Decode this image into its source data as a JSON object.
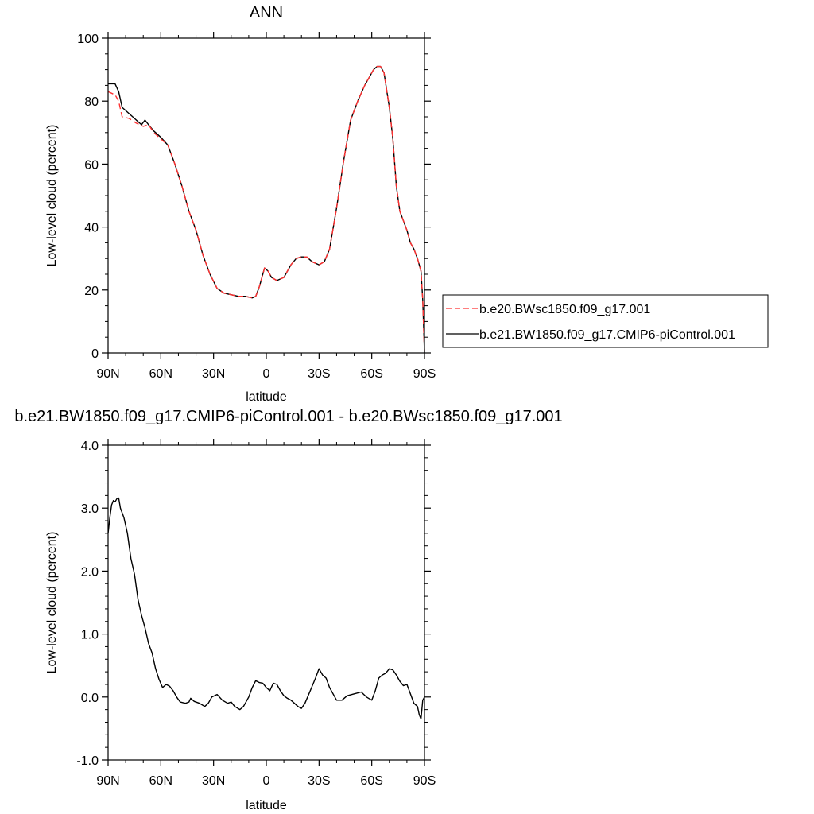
{
  "chart_data": [
    {
      "type": "line",
      "title": "ANN",
      "xlabel": "latitude",
      "ylabel": "Low-level cloud (percent)",
      "xlim": [
        90,
        -90
      ],
      "ylim": [
        0,
        100
      ],
      "x_tick_values": [
        90,
        60,
        30,
        0,
        -30,
        -60,
        -90
      ],
      "x_tick_labels": [
        "90N",
        "60N",
        "30N",
        "0",
        "30S",
        "60S",
        "90S"
      ],
      "y_tick_values": [
        0,
        20,
        40,
        60,
        80,
        100
      ],
      "y_tick_labels": [
        "0",
        "20",
        "40",
        "60",
        "80",
        "100"
      ],
      "legend_position": "right",
      "series": [
        {
          "name": "b.e20.BWsc1850.f09_g17.001",
          "color": "#ff3030",
          "dash": "dashed",
          "points": [
            [
              90,
              83
            ],
            [
              86,
              82
            ],
            [
              84,
              80
            ],
            [
              82,
              75
            ],
            [
              78,
              74.5
            ],
            [
              74,
              73
            ],
            [
              70,
              72
            ],
            [
              67,
              72.5
            ],
            [
              64,
              70
            ],
            [
              60,
              68
            ],
            [
              56,
              66
            ],
            [
              52,
              60
            ],
            [
              48,
              53
            ],
            [
              44,
              45
            ],
            [
              40,
              39
            ],
            [
              36,
              31
            ],
            [
              32,
              25
            ],
            [
              28,
              20.5
            ],
            [
              24,
              19
            ],
            [
              20,
              18.5
            ],
            [
              16,
              18
            ],
            [
              12,
              18
            ],
            [
              8,
              17.5
            ],
            [
              6,
              18
            ],
            [
              4,
              21
            ],
            [
              1,
              27
            ],
            [
              -1,
              26
            ],
            [
              -3,
              24
            ],
            [
              -6,
              23
            ],
            [
              -10,
              24
            ],
            [
              -14,
              28
            ],
            [
              -17,
              30
            ],
            [
              -20,
              30.5
            ],
            [
              -23,
              30.5
            ],
            [
              -26,
              29
            ],
            [
              -30,
              28
            ],
            [
              -33,
              29
            ],
            [
              -36,
              33
            ],
            [
              -40,
              46
            ],
            [
              -44,
              61
            ],
            [
              -48,
              74
            ],
            [
              -52,
              80
            ],
            [
              -56,
              85
            ],
            [
              -59,
              88
            ],
            [
              -61,
              90
            ],
            [
              -63,
              91
            ],
            [
              -65,
              91
            ],
            [
              -67,
              89
            ],
            [
              -70,
              78
            ],
            [
              -72,
              68
            ],
            [
              -74,
              53
            ],
            [
              -76,
              45
            ],
            [
              -78,
              42
            ],
            [
              -80,
              39
            ],
            [
              -82,
              35
            ],
            [
              -84,
              33
            ],
            [
              -86,
              30
            ],
            [
              -88,
              26
            ],
            [
              -89,
              17
            ],
            [
              -90,
              0
            ]
          ]
        },
        {
          "name": "b.e21.BW1850.f09_g17.CMIP6-piControl.001",
          "color": "#000000",
          "dash": "solid",
          "points": [
            [
              90,
              85.5
            ],
            [
              86,
              85.5
            ],
            [
              84,
              83
            ],
            [
              82,
              78
            ],
            [
              78,
              76
            ],
            [
              76,
              75
            ],
            [
              74,
              74
            ],
            [
              71,
              72.5
            ],
            [
              69,
              74
            ],
            [
              67,
              72.5
            ],
            [
              64,
              70.5
            ],
            [
              60,
              68.5
            ],
            [
              56,
              66
            ],
            [
              52,
              60
            ],
            [
              48,
              53
            ],
            [
              44,
              45
            ],
            [
              40,
              39
            ],
            [
              36,
              31
            ],
            [
              32,
              25
            ],
            [
              28,
              20.5
            ],
            [
              24,
              19
            ],
            [
              20,
              18.5
            ],
            [
              16,
              18
            ],
            [
              12,
              18
            ],
            [
              8,
              17.5
            ],
            [
              6,
              18
            ],
            [
              4,
              21
            ],
            [
              1,
              27
            ],
            [
              -1,
              26
            ],
            [
              -3,
              24
            ],
            [
              -6,
              23
            ],
            [
              -10,
              24
            ],
            [
              -14,
              28
            ],
            [
              -17,
              30
            ],
            [
              -20,
              30.5
            ],
            [
              -23,
              30.5
            ],
            [
              -26,
              29
            ],
            [
              -30,
              28
            ],
            [
              -33,
              29
            ],
            [
              -36,
              33
            ],
            [
              -40,
              46
            ],
            [
              -44,
              61
            ],
            [
              -48,
              74
            ],
            [
              -52,
              80
            ],
            [
              -56,
              85
            ],
            [
              -59,
              88
            ],
            [
              -61,
              90
            ],
            [
              -63,
              91
            ],
            [
              -65,
              91
            ],
            [
              -67,
              89
            ],
            [
              -70,
              78
            ],
            [
              -72,
              68
            ],
            [
              -74,
              53
            ],
            [
              -76,
              45
            ],
            [
              -78,
              42
            ],
            [
              -80,
              39
            ],
            [
              -82,
              35
            ],
            [
              -84,
              33
            ],
            [
              -86,
              30
            ],
            [
              -88,
              26
            ],
            [
              -89,
              17
            ],
            [
              -90,
              0
            ]
          ]
        }
      ]
    },
    {
      "type": "line",
      "title": "b.e21.BW1850.f09_g17.CMIP6-piControl.001 - b.e20.BWsc1850.f09_g17.001",
      "xlabel": "latitude",
      "ylabel": "Low-level cloud (percent)",
      "xlim": [
        90,
        -90
      ],
      "ylim": [
        -1,
        4
      ],
      "x_tick_values": [
        90,
        60,
        30,
        0,
        -30,
        -60,
        -90
      ],
      "x_tick_labels": [
        "90N",
        "60N",
        "30N",
        "0",
        "30S",
        "60S",
        "90S"
      ],
      "y_tick_values": [
        -1,
        0,
        1,
        2,
        3,
        4
      ],
      "y_tick_labels": [
        "-1.0",
        "0.0",
        "1.0",
        "2.0",
        "3.0",
        "4.0"
      ],
      "series": [
        {
          "color": "#000000",
          "dash": "solid",
          "points": [
            [
              90,
              2.6
            ],
            [
              89,
              2.85
            ],
            [
              88,
              3.05
            ],
            [
              87,
              3.12
            ],
            [
              86,
              3.1
            ],
            [
              85,
              3.15
            ],
            [
              84,
              3.16
            ],
            [
              83,
              3.0
            ],
            [
              81,
              2.85
            ],
            [
              79,
              2.6
            ],
            [
              77,
              2.2
            ],
            [
              75,
              1.95
            ],
            [
              73,
              1.55
            ],
            [
              71,
              1.3
            ],
            [
              69,
              1.1
            ],
            [
              67,
              0.85
            ],
            [
              65,
              0.7
            ],
            [
              63,
              0.45
            ],
            [
              61,
              0.28
            ],
            [
              59,
              0.15
            ],
            [
              57,
              0.2
            ],
            [
              55,
              0.17
            ],
            [
              53,
              0.1
            ],
            [
              51,
              0.0
            ],
            [
              49,
              -0.08
            ],
            [
              46,
              -0.1
            ],
            [
              44,
              -0.08
            ],
            [
              43,
              -0.02
            ],
            [
              41,
              -0.07
            ],
            [
              38,
              -0.1
            ],
            [
              35,
              -0.15
            ],
            [
              33,
              -0.1
            ],
            [
              31,
              0.0
            ],
            [
              28,
              0.04
            ],
            [
              25,
              -0.05
            ],
            [
              22,
              -0.1
            ],
            [
              20,
              -0.08
            ],
            [
              18,
              -0.15
            ],
            [
              15,
              -0.2
            ],
            [
              13,
              -0.15
            ],
            [
              10,
              0.0
            ],
            [
              8,
              0.15
            ],
            [
              6,
              0.26
            ],
            [
              4,
              0.23
            ],
            [
              2,
              0.22
            ],
            [
              0,
              0.15
            ],
            [
              -2,
              0.1
            ],
            [
              -4,
              0.22
            ],
            [
              -6,
              0.2
            ],
            [
              -8,
              0.1
            ],
            [
              -10,
              0.02
            ],
            [
              -12,
              -0.02
            ],
            [
              -14,
              -0.05
            ],
            [
              -16,
              -0.1
            ],
            [
              -18,
              -0.15
            ],
            [
              -20,
              -0.18
            ],
            [
              -22,
              -0.1
            ],
            [
              -25,
              0.1
            ],
            [
              -28,
              0.3
            ],
            [
              -30,
              0.45
            ],
            [
              -32,
              0.35
            ],
            [
              -34,
              0.3
            ],
            [
              -36,
              0.15
            ],
            [
              -38,
              0.05
            ],
            [
              -40,
              -0.05
            ],
            [
              -43,
              -0.05
            ],
            [
              -46,
              0.02
            ],
            [
              -50,
              0.05
            ],
            [
              -54,
              0.08
            ],
            [
              -57,
              0.0
            ],
            [
              -60,
              -0.05
            ],
            [
              -62,
              0.1
            ],
            [
              -64,
              0.3
            ],
            [
              -66,
              0.35
            ],
            [
              -68,
              0.38
            ],
            [
              -70,
              0.45
            ],
            [
              -72,
              0.43
            ],
            [
              -74,
              0.35
            ],
            [
              -76,
              0.25
            ],
            [
              -78,
              0.18
            ],
            [
              -80,
              0.2
            ],
            [
              -82,
              0.05
            ],
            [
              -84,
              -0.1
            ],
            [
              -86,
              -0.15
            ],
            [
              -87,
              -0.28
            ],
            [
              -88,
              -0.35
            ],
            [
              -89,
              -0.05
            ],
            [
              -90,
              0.0
            ]
          ]
        }
      ]
    }
  ]
}
